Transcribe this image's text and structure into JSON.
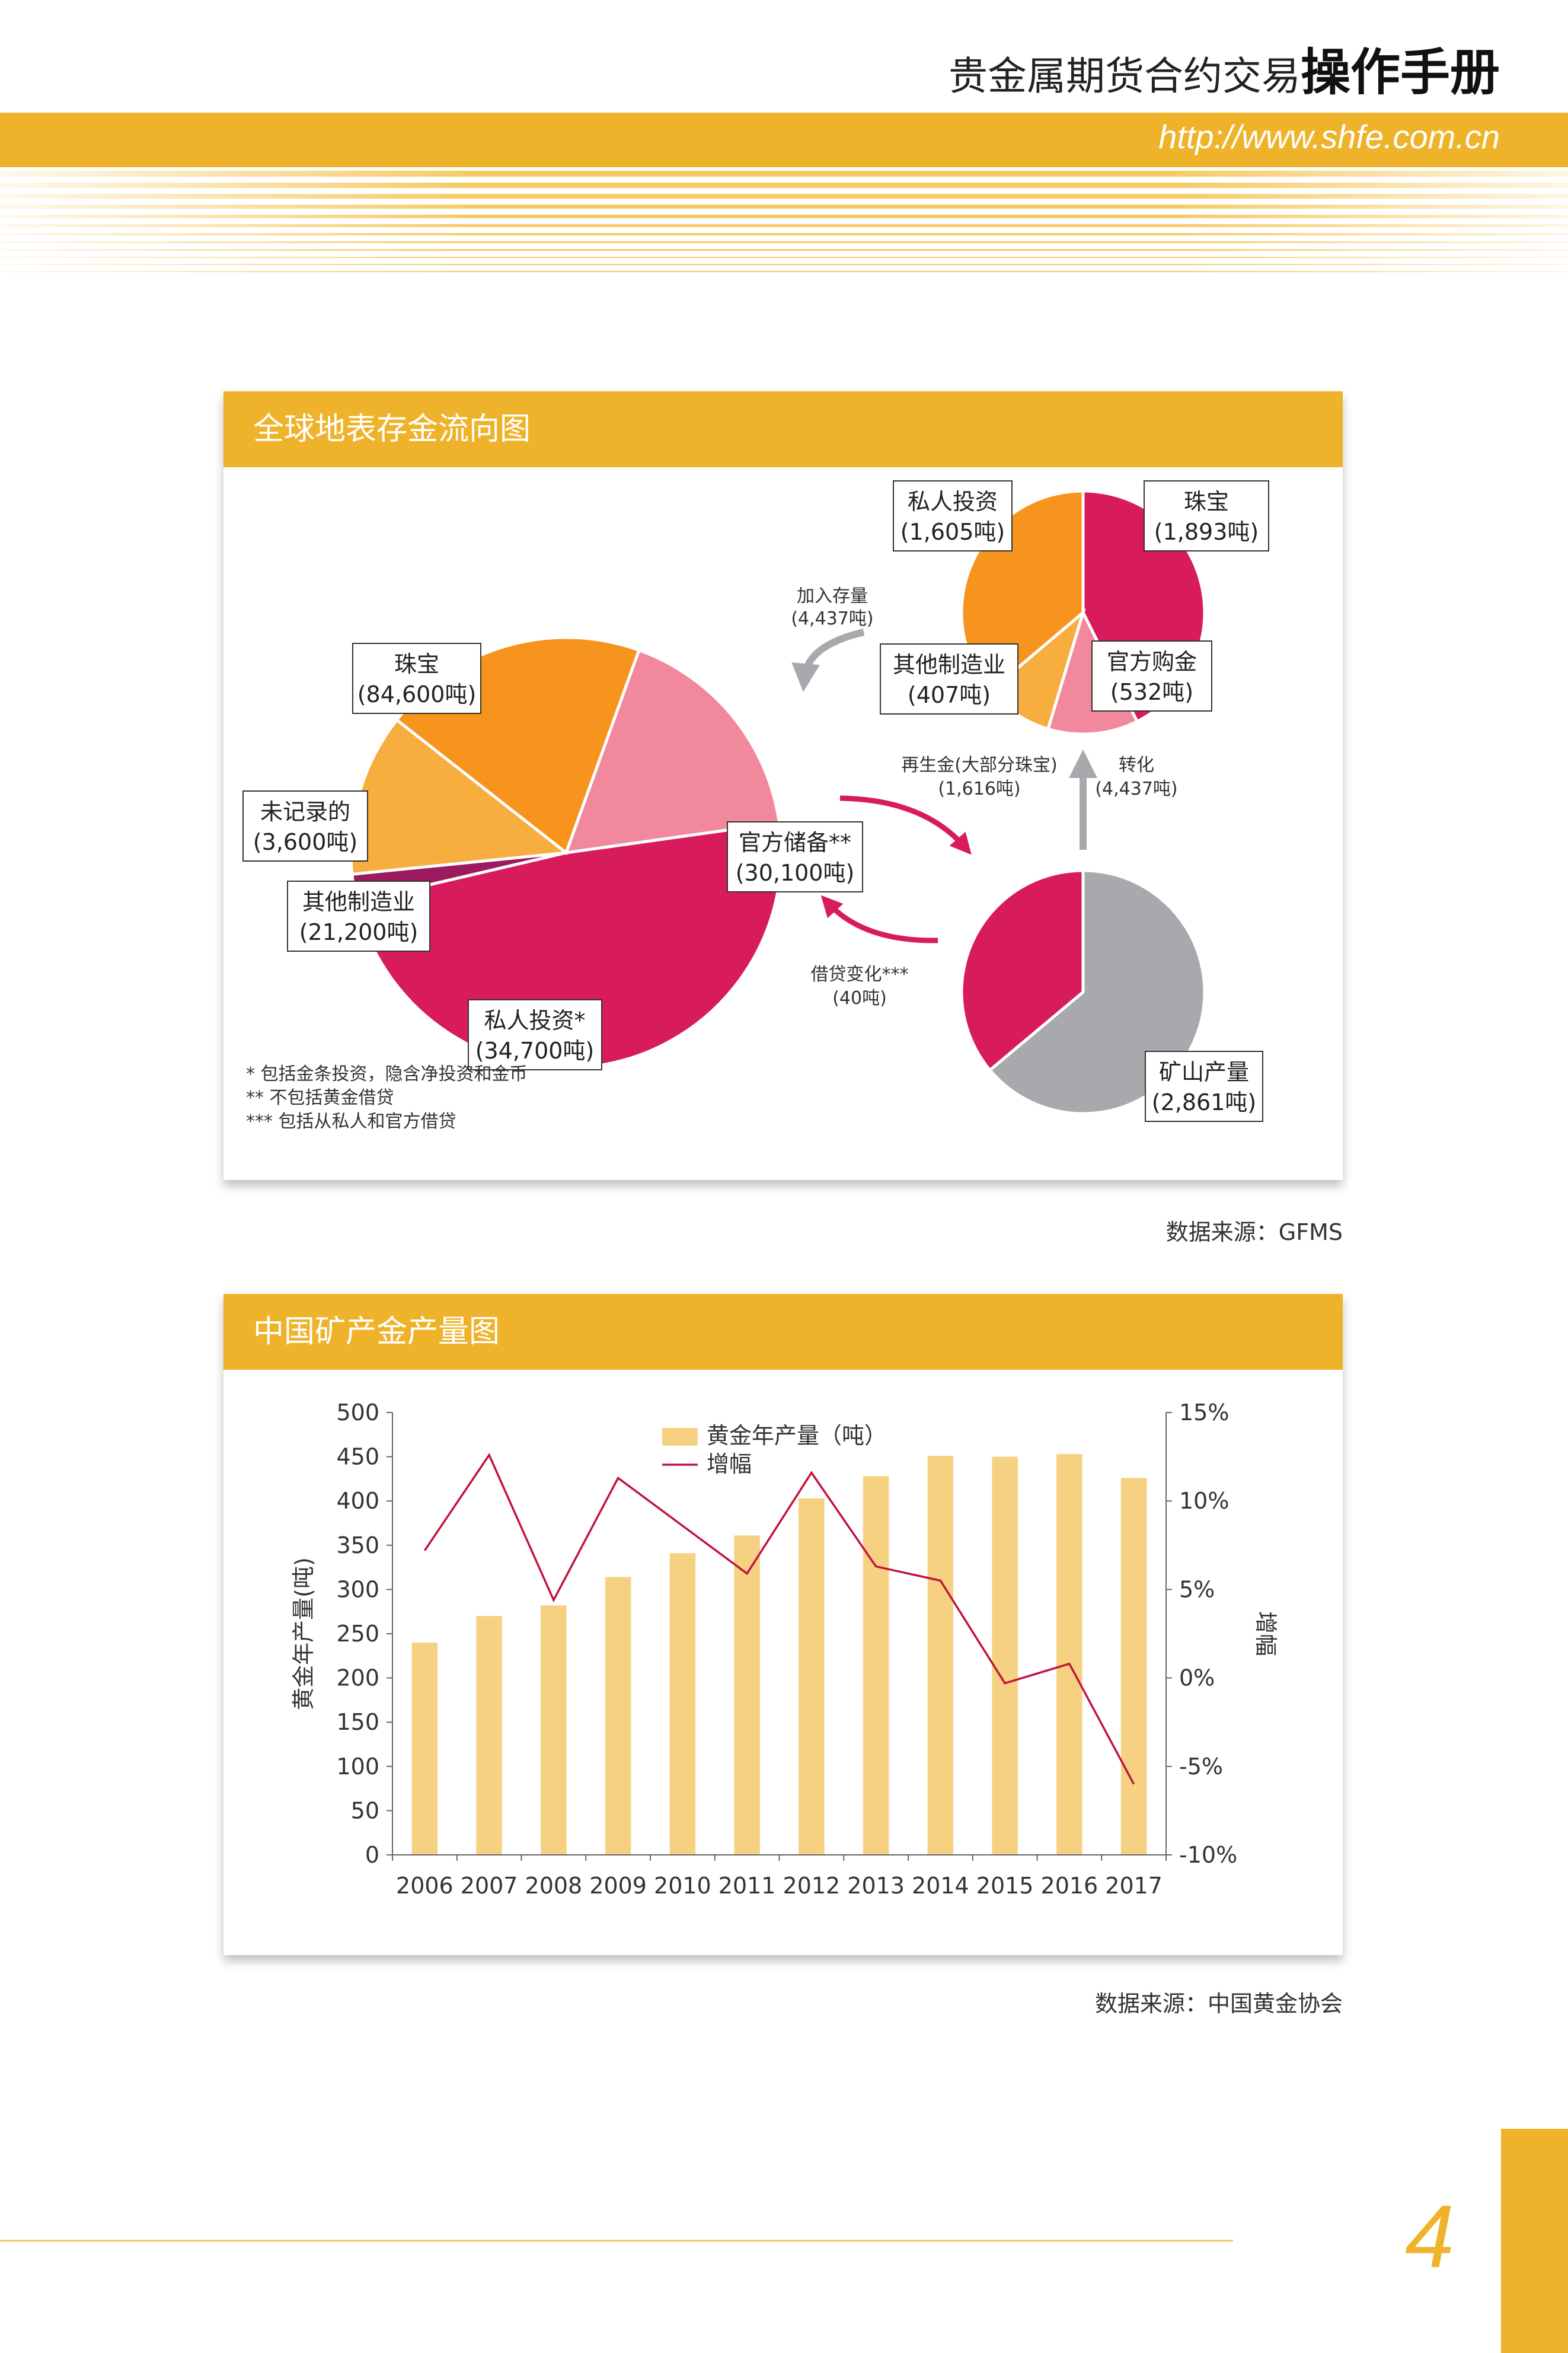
{
  "header": {
    "title": "贵金属期货合约交易",
    "title_strong": "操作手册",
    "url": "http://www.shfe.com.cn"
  },
  "flow_card": {
    "title": "全球地表存金流向图",
    "source": "数据来源：GFMS",
    "big_pie": {
      "slices": [
        {
          "name": "珠宝",
          "value": "(84,600吨)",
          "tonnes": 84600,
          "color": "#d81b5c"
        },
        {
          "name": "未记录的",
          "value": "(3,600吨)",
          "tonnes": 3600,
          "color": "#9c1b5e"
        },
        {
          "name": "其他制造业",
          "value": "(21,200吨)",
          "tonnes": 21200,
          "color": "#f8ae3f"
        },
        {
          "name": "私人投资*",
          "value": "(34,700吨)",
          "tonnes": 34700,
          "color": "#f7941d"
        },
        {
          "name": "官方储备**",
          "value": "(30,100吨)",
          "tonnes": 30100,
          "color": "#f1889c"
        }
      ]
    },
    "top_pie": {
      "slices": [
        {
          "name": "珠宝",
          "value": "(1,893吨)",
          "tonnes": 1893,
          "color": "#d81b5c"
        },
        {
          "name": "官方购金",
          "value": "(532吨)",
          "tonnes": 532,
          "color": "#f1889c"
        },
        {
          "name": "其他制造业",
          "value": "(407吨)",
          "tonnes": 407,
          "color": "#f8ae3f"
        },
        {
          "name": "私人投资",
          "value": "(1,605吨)",
          "tonnes": 1605,
          "color": "#f7941d"
        }
      ]
    },
    "bottom_pie": {
      "slices": [
        {
          "name": "矿山产量",
          "value": "(2,861吨)",
          "tonnes": 2861,
          "color": "#a7a9ac"
        },
        {
          "name": "再生金",
          "tonnes": 1616,
          "color": "#d81b5c"
        }
      ]
    },
    "arrows": {
      "add_stock": {
        "label": "加入存量",
        "value": "(4,437吨)"
      },
      "recycle": {
        "label": "再生金(大部分珠宝)",
        "value": "(1,616吨)"
      },
      "convert": {
        "label": "转化",
        "value": "(4,437吨)"
      },
      "lending": {
        "label": "借贷变化***",
        "value": "(40吨)"
      }
    },
    "footnotes": [
      "* 包括金条投资，隐含净投资和金币",
      "** 不包括黄金借贷",
      "*** 包括从私人和官方借贷"
    ]
  },
  "production_card": {
    "title": "中国矿产金产量图",
    "source": "数据来源：中国黄金协会"
  },
  "chart_data": {
    "type": "bar",
    "categories": [
      "2006",
      "2007",
      "2008",
      "2009",
      "2010",
      "2011",
      "2012",
      "2013",
      "2014",
      "2015",
      "2016",
      "2017"
    ],
    "series": [
      {
        "name": "黄金年产量（吨）",
        "type": "bar",
        "axis": "left",
        "values": [
          240,
          270,
          282,
          314,
          341,
          361,
          403,
          428,
          451,
          450,
          453,
          426
        ],
        "color": "#f6d182"
      },
      {
        "name": "增幅",
        "type": "line",
        "axis": "right",
        "values": [
          7.2,
          12.6,
          4.4,
          11.3,
          8.6,
          5.9,
          11.6,
          6.3,
          5.5,
          -0.3,
          0.8,
          -6.0
        ],
        "color": "#c0143c"
      }
    ],
    "ylabel": "黄金年产量(吨)",
    "y2label": "增幅",
    "ylim": [
      0,
      500
    ],
    "y2lim": [
      -10,
      15
    ],
    "yticks": [
      "0",
      "50",
      "100",
      "150",
      "200",
      "250",
      "300",
      "350",
      "400",
      "450",
      "500"
    ],
    "y2ticks": [
      "-10%",
      "-5%",
      "0%",
      "5%",
      "10%",
      "15%"
    ],
    "legend": "top-center",
    "grid": false
  },
  "page": {
    "number": "4"
  }
}
